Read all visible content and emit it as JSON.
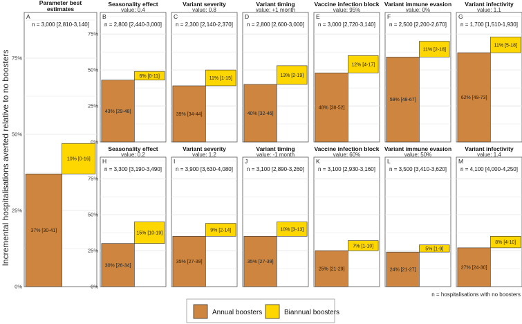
{
  "y_axis_label": "Incremental hospitalisations averted relative to no boosters",
  "footnote": "n = hospitalisations with no boosters",
  "legend": [
    {
      "label": "Annual boosters",
      "color": "#CD853F"
    },
    {
      "label": "Biannual boosters",
      "color": "#FFD700"
    }
  ],
  "colors": {
    "annual": "#CD853F",
    "biannual": "#FFD700",
    "grid": "#E5E5E5",
    "border": "#555555"
  },
  "chart_data": [
    {
      "type": "bar",
      "letter": "A",
      "title": "Parameter best estimates",
      "title_lines": [
        "Parameter best",
        "estimates"
      ],
      "subtitle": "",
      "n": "n = 3,000 [2,810-3,140]",
      "categories": [
        "Annual boosters",
        "Biannual boosters"
      ],
      "values": [
        37,
        10
      ],
      "labels": [
        "37% [30-41]",
        "10% [0-16]"
      ],
      "stacked": true,
      "ylim": [
        0,
        90
      ],
      "yticks": [
        "0%",
        "25%",
        "50%",
        "75%"
      ]
    },
    {
      "type": "bar",
      "letter": "B",
      "title": "Seasonality effect",
      "subtitle": "value: 0.4",
      "n": "n = 2,800 [2,440-3,000]",
      "values": [
        43,
        6
      ],
      "labels": [
        "43% [29-48]",
        "6% [0-11]"
      ],
      "stacked": true,
      "ylim": [
        0,
        90
      ],
      "yticks": [
        "0%",
        "25%",
        "50%",
        "75%"
      ]
    },
    {
      "type": "bar",
      "letter": "C",
      "title": "Variant severity",
      "subtitle": "value: 0.8",
      "n": "n = 2,300 [2,140-2,370]",
      "values": [
        39,
        11
      ],
      "labels": [
        "39% [34-44]",
        "11% [1-15]"
      ],
      "stacked": true,
      "ylim": [
        0,
        90
      ]
    },
    {
      "type": "bar",
      "letter": "D",
      "title": "Variant timing",
      "subtitle": "value: +1 month",
      "n": "n = 2,800 [2,600-3,000]",
      "values": [
        40,
        13
      ],
      "labels": [
        "40% [32-46]",
        "13% [2-19]"
      ],
      "stacked": true,
      "ylim": [
        0,
        90
      ]
    },
    {
      "type": "bar",
      "letter": "E",
      "title": "Vaccine infection block",
      "subtitle": "value: 95%",
      "n": "n = 3,000 [2,720-3,140]",
      "values": [
        48,
        12
      ],
      "labels": [
        "48% [38-52]",
        "12% [4-17]"
      ],
      "stacked": true,
      "ylim": [
        0,
        90
      ]
    },
    {
      "type": "bar",
      "letter": "F",
      "title": "Variant immune evasion",
      "subtitle": "value: 0%",
      "n": "n = 2,500 [2,200-2,670]",
      "values": [
        59,
        11
      ],
      "labels": [
        "59% [48-67]",
        "11% [2-18]"
      ],
      "stacked": true,
      "ylim": [
        0,
        90
      ]
    },
    {
      "type": "bar",
      "letter": "G",
      "title": "Variant infectivity",
      "subtitle": "value: 1.1",
      "n": "n = 1,700 [1,510-1,930]",
      "values": [
        62,
        11
      ],
      "labels": [
        "62% [49-73]",
        "11% [5-18]"
      ],
      "stacked": true,
      "ylim": [
        0,
        90
      ]
    },
    {
      "type": "bar",
      "letter": "H",
      "title": "Seasonality effect",
      "subtitle": "value: 0.2",
      "n": "n = 3,300 [3,190-3,490]",
      "values": [
        30,
        15
      ],
      "labels": [
        "30% [26-34]",
        "15% [10-19]"
      ],
      "stacked": true,
      "ylim": [
        0,
        90
      ],
      "yticks": [
        "0%",
        "25%",
        "50%",
        "75%"
      ]
    },
    {
      "type": "bar",
      "letter": "I",
      "title": "Variant severity",
      "subtitle": "value: 1.2",
      "n": "n = 3,900 [3,630-4,080]",
      "values": [
        35,
        9
      ],
      "labels": [
        "35% [27-39]",
        "9% [2-14]"
      ],
      "stacked": true,
      "ylim": [
        0,
        90
      ]
    },
    {
      "type": "bar",
      "letter": "J",
      "title": "Variant timing",
      "subtitle": "value: -1  month",
      "n": "n = 3,100 [2,890-3,260]",
      "values": [
        35,
        10
      ],
      "labels": [
        "35% [27-39]",
        "10% [3-13]"
      ],
      "stacked": true,
      "ylim": [
        0,
        90
      ]
    },
    {
      "type": "bar",
      "letter": "K",
      "title": "Vaccine infection block",
      "subtitle": "value: 60%",
      "n": "n = 3,100 [2,930-3,160]",
      "values": [
        25,
        7
      ],
      "labels": [
        "25% [21-29]",
        "7% [1-10]"
      ],
      "stacked": true,
      "ylim": [
        0,
        90
      ]
    },
    {
      "type": "bar",
      "letter": "L",
      "title": "Variant immune evasion",
      "subtitle": "value: 50%",
      "n": "n = 3,500 [3,410-3,620]",
      "values": [
        24,
        5
      ],
      "labels": [
        "24% [21-27]",
        "5% [1-9]"
      ],
      "stacked": true,
      "ylim": [
        0,
        90
      ]
    },
    {
      "type": "bar",
      "letter": "M",
      "title": "Variant infectivity",
      "subtitle": "value: 1.4",
      "n": "n = 4,100 [4,000-4,250]",
      "values": [
        27,
        8
      ],
      "labels": [
        "27% [24-30]",
        "8% [4-10]"
      ],
      "stacked": true,
      "ylim": [
        0,
        90
      ]
    }
  ]
}
